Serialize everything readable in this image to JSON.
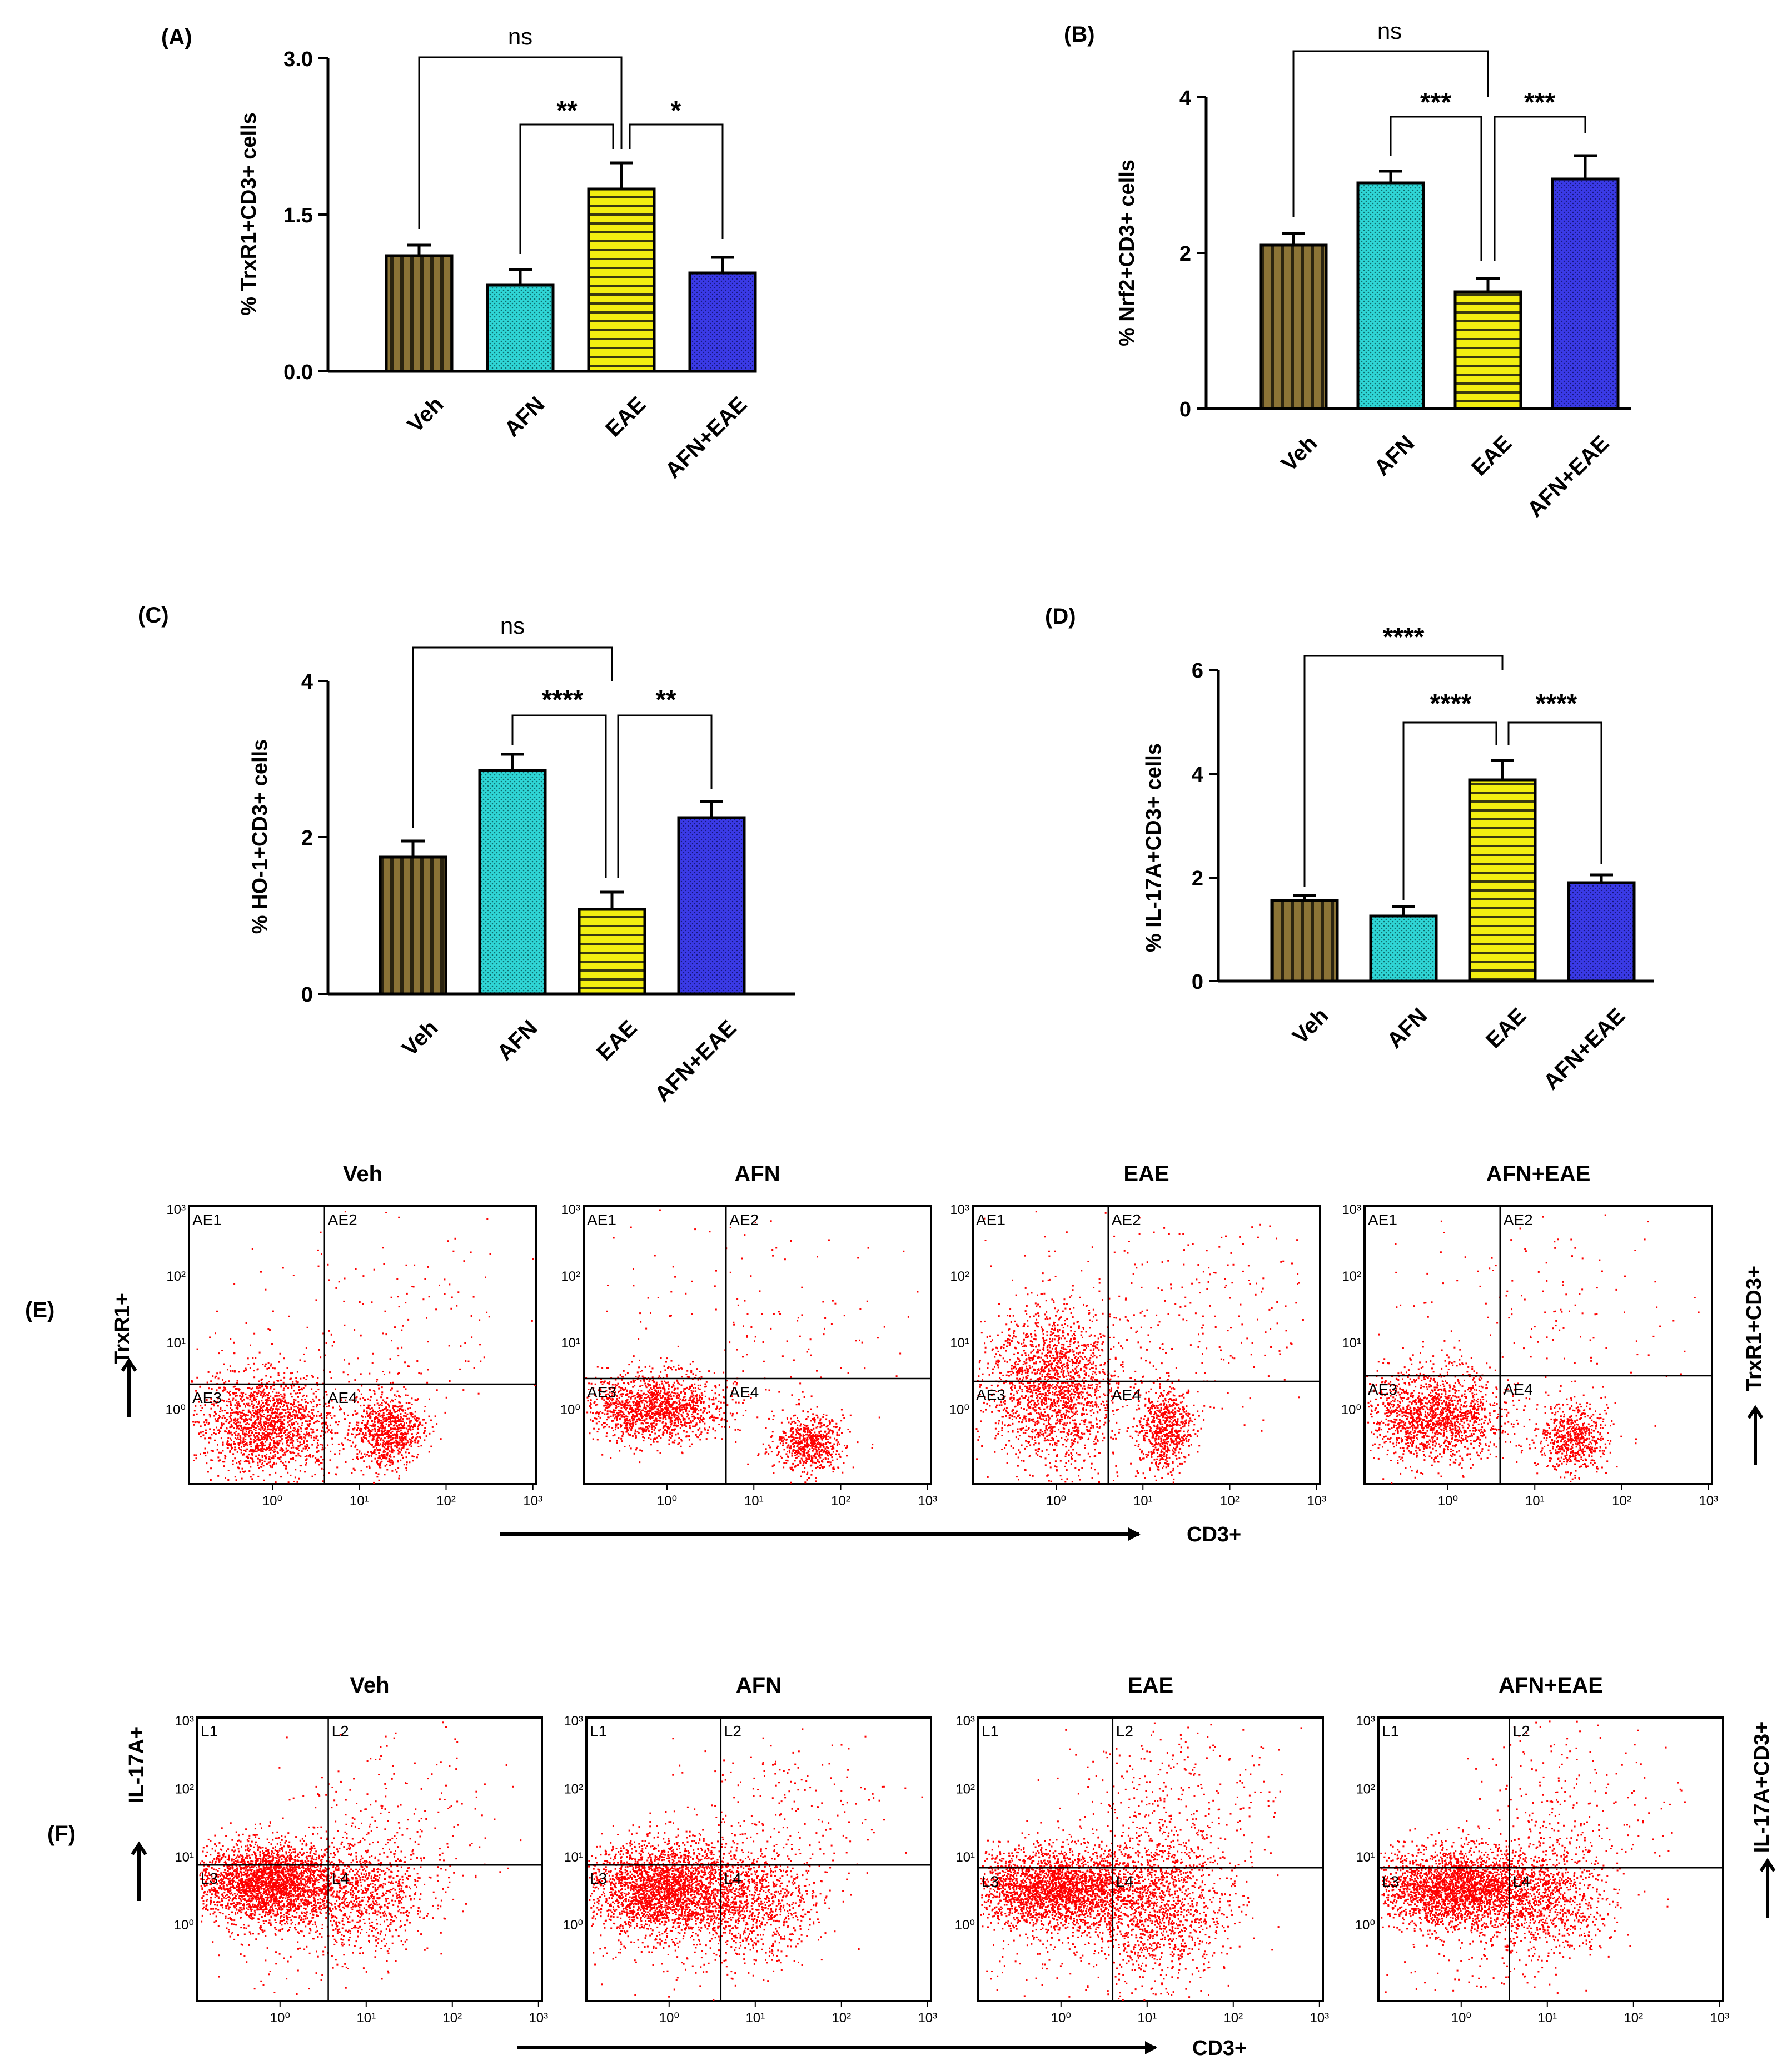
{
  "colors": {
    "veh": "#8b7336",
    "afn": "#2fd6d6",
    "eae": "#f2ee10",
    "afn_eae": "#3a3ae6",
    "dot": "#ff0000"
  },
  "chart_data": [
    {
      "type": "bar",
      "panel_label": "(A)",
      "ylabel": "% TrxR1+CD3+ cells",
      "categories": [
        "Veh",
        "AFN",
        "EAE",
        "AFN+EAE"
      ],
      "values": [
        1.1,
        0.82,
        1.75,
        0.95
      ],
      "errors": [
        0.1,
        0.15,
        0.25,
        0.15
      ],
      "ylim": [
        0,
        3.0
      ],
      "yticks": [
        "0.0",
        "1.5",
        "3.0"
      ],
      "yticks_values": [
        0,
        1.5,
        3.0
      ],
      "annotations": [
        {
          "from": 0,
          "to": 2,
          "text": "ns"
        },
        {
          "from": 1,
          "to": 2,
          "text": "**"
        },
        {
          "from": 2,
          "to": 3,
          "text": "*"
        }
      ]
    },
    {
      "type": "bar",
      "panel_label": "(B)",
      "ylabel": "% Nrf2+CD3+ cells",
      "categories": [
        "Veh",
        "AFN",
        "EAE",
        "AFN+EAE"
      ],
      "values": [
        2.1,
        2.9,
        1.5,
        2.95
      ],
      "errors": [
        0.15,
        0.15,
        0.17,
        0.3
      ],
      "ylim": [
        0,
        4
      ],
      "yticks": [
        "0",
        "2",
        "4"
      ],
      "yticks_values": [
        0,
        2,
        4
      ],
      "annotations": [
        {
          "from": 0,
          "to": 2,
          "text": "ns"
        },
        {
          "from": 1,
          "to": 2,
          "text": "***"
        },
        {
          "from": 2,
          "to": 3,
          "text": "***"
        }
      ]
    },
    {
      "type": "bar",
      "panel_label": "(C)",
      "ylabel": "% HO-1+CD3+ cells",
      "categories": [
        "Veh",
        "AFN",
        "EAE",
        "AFN+EAE"
      ],
      "values": [
        1.75,
        2.85,
        1.08,
        2.25
      ],
      "errors": [
        0.2,
        0.2,
        0.22,
        0.2
      ],
      "ylim": [
        0,
        4
      ],
      "yticks": [
        "0",
        "2",
        "4"
      ],
      "yticks_values": [
        0,
        2,
        4
      ],
      "annotations": [
        {
          "from": 0,
          "to": 2,
          "text": "ns"
        },
        {
          "from": 1,
          "to": 2,
          "text": "****"
        },
        {
          "from": 2,
          "to": 3,
          "text": "**"
        }
      ]
    },
    {
      "type": "bar",
      "panel_label": "(D)",
      "ylabel": "% IL-17A+CD3+ cells",
      "categories": [
        "Veh",
        "AFN",
        "EAE",
        "AFN+EAE"
      ],
      "values": [
        1.55,
        1.25,
        3.88,
        1.9
      ],
      "errors": [
        0.1,
        0.18,
        0.38,
        0.15
      ],
      "ylim": [
        0,
        6
      ],
      "yticks": [
        "0",
        "2",
        "4",
        "6"
      ],
      "yticks_values": [
        0,
        2,
        4,
        6
      ],
      "annotations": [
        {
          "from": 0,
          "to": 2,
          "text": "****"
        },
        {
          "from": 1,
          "to": 2,
          "text": "****"
        },
        {
          "from": 2,
          "to": 3,
          "text": "****"
        }
      ]
    }
  ],
  "scatter_E": {
    "panel_label": "(E)",
    "titles": [
      "Veh",
      "AFN",
      "EAE",
      "AFN+EAE"
    ],
    "quadrants": [
      "AE1",
      "AE2",
      "AE3",
      "AE4"
    ],
    "x_ticks": [
      "10⁰",
      "10¹",
      "10²",
      "10³"
    ],
    "x_ticks_alt_last": "10",
    "y_ticks": [
      "10³",
      "10²",
      "10¹",
      "10⁰"
    ],
    "y_axis_label": "TrxR1+",
    "x_axis_label": "CD3+",
    "right_label": "TrxR1+CD3+"
  },
  "scatter_F": {
    "panel_label": "(F)",
    "titles": [
      "Veh",
      "AFN",
      "EAE",
      "AFN+EAE"
    ],
    "quadrants": [
      "L1",
      "L2",
      "L3",
      "L4"
    ],
    "x_ticks": [
      "10⁰",
      "10¹",
      "10²",
      "10³"
    ],
    "y_ticks": [
      "10³",
      "10²",
      "10¹",
      "10⁰"
    ],
    "y_axis_label": "IL-17A+",
    "x_axis_label": "CD3+",
    "right_label": "IL-17A+CD3+"
  }
}
